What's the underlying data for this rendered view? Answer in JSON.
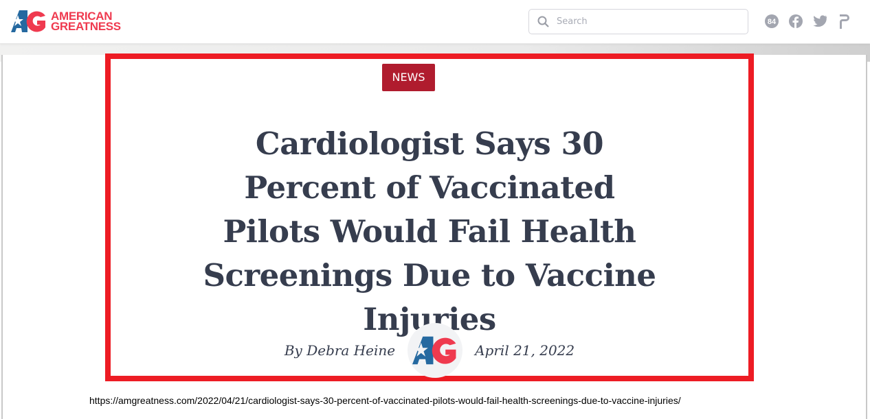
{
  "header": {
    "logo_text_line1": "AMERICAN",
    "logo_text_line2": "GREATNESS",
    "logo_mark": "AG",
    "search_placeholder": "Search",
    "social_icons": [
      "84-icon",
      "facebook-icon",
      "twitter-icon",
      "parler-icon"
    ],
    "badge_84": "84"
  },
  "article": {
    "category": "NEWS",
    "title": "Cardiologist Says 30 Percent of Vaccinated Pilots Would Fail Health Screenings Due to Vaccine Injuries",
    "author": "By Debra Heine",
    "date": "April 21, 2022"
  },
  "url": "https://amgreatness.com/2022/04/21/cardiologist-says-30-percent-of-vaccinated-pilots-would-fail-health-screenings-due-to-vaccine-injuries/",
  "colors": {
    "brand_red": "#ef3a4f",
    "brand_blue": "#2569a0",
    "tag_bg": "#b01c2e",
    "highlight_box": "#ed1c24",
    "title_text": "#363d4e"
  }
}
